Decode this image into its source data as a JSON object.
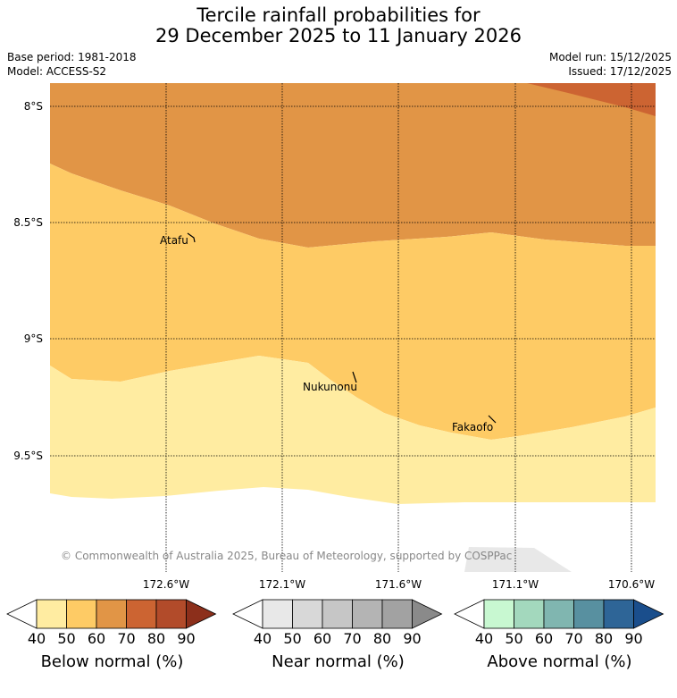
{
  "title": {
    "line1": "Tercile rainfall probabilities for",
    "line2": "29 December 2025 to 11 January 2026"
  },
  "meta": {
    "base_period": "Base period: 1981-2018",
    "model": "Model: ACCESS-S2",
    "model_run": "Model run: 15/12/2025",
    "issued": "Issued: 17/12/2025"
  },
  "map": {
    "lat_labels": [
      "8°S",
      "8.5°S",
      "9°S",
      "9.5°S"
    ],
    "lon_labels": [
      "172.6°W",
      "172.1°W",
      "171.6°W",
      "171.1°W",
      "170.6°W"
    ],
    "places": [
      "Atafu",
      "Nukunonu",
      "Fakaofo"
    ],
    "copyright": "© Commonwealth of Australia 2025, Bureau of Meteorology, supported by COSPPac"
  },
  "legends": [
    {
      "label": "Below normal (%)",
      "ticks": [
        "40",
        "50",
        "60",
        "70",
        "80",
        "90"
      ],
      "colors": [
        "#ffffff",
        "#ffeca1",
        "#fecb65",
        "#e19546",
        "#cc6432",
        "#b24b2a",
        "#8c2f1b"
      ]
    },
    {
      "label": "Near normal (%)",
      "ticks": [
        "40",
        "50",
        "60",
        "70",
        "80",
        "90"
      ],
      "colors": [
        "#ffffff",
        "#e8e8e8",
        "#d8d8d8",
        "#c6c6c6",
        "#b4b4b4",
        "#a2a2a2",
        "#8a8a8a"
      ]
    },
    {
      "label": "Above normal (%)",
      "ticks": [
        "40",
        "50",
        "60",
        "70",
        "80",
        "90"
      ],
      "colors": [
        "#ffffff",
        "#c8f8d1",
        "#a3d8bd",
        "#80b6b0",
        "#5890a0",
        "#2e6597",
        "#1a4e8c"
      ]
    }
  ]
}
